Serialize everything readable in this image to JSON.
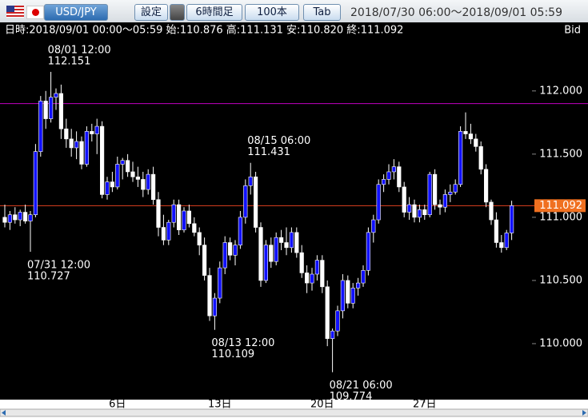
{
  "ui": {
    "pair": "USD/JPY",
    "buttons": [
      "設定",
      "6時間足",
      "100本",
      "Tab"
    ],
    "range": "2018/07/30 06:00～2018/09/01 05:59",
    "info": "日時:2018/09/01 00:00～05:59 始:110.876 高:111.131 安:110.820 終:111.092",
    "side": "Bid"
  },
  "chart_data": {
    "type": "candlestick",
    "up_color": "#1010ff",
    "down_color": "#ffffff",
    "ylim": [
      109.557,
      112.53
    ],
    "yticks": [
      {
        "value": 112,
        "label": "112.000"
      },
      {
        "value": 111.5,
        "label": "111.500"
      },
      {
        "value": 111,
        "label": "111.000"
      },
      {
        "value": 110.5,
        "label": "110.500"
      },
      {
        "value": 110,
        "label": "110.000"
      }
    ],
    "hline": {
      "value": 111.9,
      "color": "#c000c0"
    },
    "last_line_color": "#e04020",
    "categories": [
      null,
      null,
      null,
      null,
      null,
      null,
      null,
      null,
      null,
      null,
      null,
      null,
      null,
      null,
      null,
      null,
      null,
      null,
      null,
      null,
      null,
      null,
      "6日",
      null,
      null,
      null,
      null,
      null,
      null,
      null,
      null,
      null,
      null,
      null,
      null,
      null,
      null,
      null,
      null,
      null,
      null,
      null,
      "13日",
      null,
      null,
      null,
      null,
      null,
      null,
      null,
      null,
      null,
      null,
      null,
      null,
      null,
      null,
      null,
      null,
      null,
      null,
      null,
      "20日",
      null,
      null,
      null,
      null,
      null,
      null,
      null,
      null,
      null,
      null,
      null,
      null,
      null,
      null,
      null,
      null,
      null,
      null,
      null,
      "27日",
      null,
      null,
      null,
      null,
      null,
      null,
      null,
      null,
      null,
      null,
      null,
      null,
      null,
      null,
      null,
      null,
      null
    ],
    "open": [
      111.0,
      110.96,
      111.02,
      110.98,
      111.04,
      110.97,
      111.02,
      111.52,
      111.92,
      111.78,
      111.95,
      111.98,
      111.7,
      111.62,
      111.55,
      111.6,
      111.42,
      111.68,
      111.66,
      111.72,
      111.18,
      111.28,
      111.24,
      111.42,
      111.45,
      111.36,
      111.32,
      111.3,
      111.22,
      111.34,
      111.14,
      110.92,
      110.82,
      110.96,
      111.1,
      110.9,
      111.05,
      110.95,
      110.88,
      110.78,
      110.54,
      110.22,
      110.36,
      110.6,
      110.8,
      110.7,
      110.78,
      111.0,
      111.25,
      111.32,
      110.92,
      110.5,
      110.78,
      110.65,
      110.84,
      110.8,
      110.76,
      110.88,
      110.72,
      110.56,
      110.48,
      110.55,
      110.66,
      110.45,
      110.04,
      110.1,
      110.26,
      110.5,
      110.32,
      110.44,
      110.48,
      110.58,
      110.88,
      110.98,
      111.26,
      111.3,
      111.36,
      111.4,
      111.24,
      111.04,
      111.1,
      111.0,
      111.06,
      111.02,
      111.34,
      111.1,
      111.08,
      111.18,
      111.2,
      111.26,
      111.68,
      111.66,
      111.62,
      111.56,
      111.38,
      111.12,
      110.98,
      110.8,
      110.76,
      110.876
    ],
    "high": [
      111.1,
      111.05,
      111.08,
      111.06,
      111.1,
      111.05,
      111.58,
      111.96,
      112.0,
      112.151,
      112.02,
      112.05,
      111.78,
      111.7,
      111.68,
      111.64,
      111.72,
      111.74,
      111.78,
      111.76,
      111.32,
      111.36,
      111.48,
      111.47,
      111.5,
      111.44,
      111.4,
      111.36,
      111.38,
      111.4,
      111.2,
      111.02,
      110.98,
      111.14,
      111.14,
      111.08,
      111.1,
      111.0,
      110.92,
      110.84,
      110.6,
      110.4,
      110.65,
      110.85,
      110.84,
      110.82,
      111.05,
      111.3,
      111.431,
      111.36,
      110.96,
      110.82,
      110.84,
      110.88,
      110.9,
      110.92,
      110.92,
      110.92,
      110.78,
      110.62,
      110.6,
      110.7,
      110.7,
      110.5,
      110.12,
      110.3,
      110.55,
      110.54,
      110.48,
      110.52,
      110.62,
      110.92,
      111.02,
      111.3,
      111.34,
      111.42,
      111.46,
      111.44,
      111.28,
      111.16,
      111.14,
      111.1,
      111.1,
      111.36,
      111.38,
      111.14,
      111.22,
      111.26,
      111.3,
      111.72,
      111.83,
      111.74,
      111.66,
      111.6,
      111.42,
      111.14,
      111.04,
      110.86,
      110.9,
      111.131
    ],
    "low": [
      110.92,
      110.9,
      110.95,
      110.93,
      110.95,
      110.727,
      111.0,
      111.48,
      111.7,
      111.75,
      111.85,
      111.62,
      111.55,
      111.48,
      111.46,
      111.38,
      111.4,
      111.6,
      111.5,
      111.15,
      111.14,
      111.2,
      111.22,
      111.3,
      111.32,
      111.28,
      111.24,
      111.16,
      111.18,
      111.1,
      110.85,
      110.78,
      110.78,
      110.92,
      110.86,
      110.88,
      110.92,
      110.85,
      110.7,
      110.5,
      110.18,
      110.109,
      110.32,
      110.55,
      110.66,
      110.62,
      110.75,
      110.95,
      111.18,
      110.88,
      110.45,
      110.48,
      110.6,
      110.62,
      110.74,
      110.7,
      110.72,
      110.68,
      110.52,
      110.4,
      110.42,
      110.5,
      110.4,
      109.98,
      109.774,
      110.06,
      110.2,
      110.28,
      110.28,
      110.38,
      110.45,
      110.54,
      110.8,
      110.95,
      111.2,
      111.26,
      111.3,
      111.2,
      111.0,
      110.98,
      110.96,
      110.96,
      110.98,
      111.0,
      111.06,
      111.02,
      111.04,
      111.12,
      111.18,
      111.24,
      111.62,
      111.58,
      111.52,
      111.34,
      111.08,
      110.94,
      110.76,
      110.72,
      110.74,
      110.82
    ],
    "close": [
      110.96,
      111.02,
      110.98,
      111.04,
      110.97,
      111.02,
      111.52,
      111.92,
      111.78,
      111.95,
      111.98,
      111.7,
      111.62,
      111.55,
      111.6,
      111.42,
      111.68,
      111.66,
      111.72,
      111.18,
      111.28,
      111.24,
      111.42,
      111.45,
      111.36,
      111.32,
      111.3,
      111.22,
      111.34,
      111.14,
      110.92,
      110.82,
      110.96,
      111.1,
      110.9,
      111.05,
      110.95,
      110.88,
      110.78,
      110.54,
      110.22,
      110.36,
      110.6,
      110.8,
      110.7,
      110.78,
      111.0,
      111.25,
      111.32,
      110.92,
      110.5,
      110.78,
      110.65,
      110.84,
      110.8,
      110.76,
      110.88,
      110.72,
      110.56,
      110.48,
      110.55,
      110.66,
      110.45,
      110.04,
      110.1,
      110.26,
      110.5,
      110.32,
      110.44,
      110.48,
      110.58,
      110.88,
      110.98,
      111.26,
      111.3,
      111.36,
      111.4,
      111.24,
      111.04,
      111.1,
      111.0,
      111.06,
      111.02,
      111.34,
      111.1,
      111.08,
      111.18,
      111.2,
      111.26,
      111.68,
      111.66,
      111.62,
      111.56,
      111.38,
      111.12,
      110.98,
      110.8,
      110.76,
      110.876,
      111.092
    ],
    "annotations": [
      {
        "label": "07/31 12:00",
        "value": 110.727
      },
      {
        "label": "08/01 12:00",
        "value": 112.151
      },
      {
        "label": "08/13 12:00",
        "value": 110.109
      },
      {
        "label": "08/15 06:00",
        "value": 111.431
      },
      {
        "label": "08/21 06:00",
        "value": 109.774
      }
    ]
  }
}
